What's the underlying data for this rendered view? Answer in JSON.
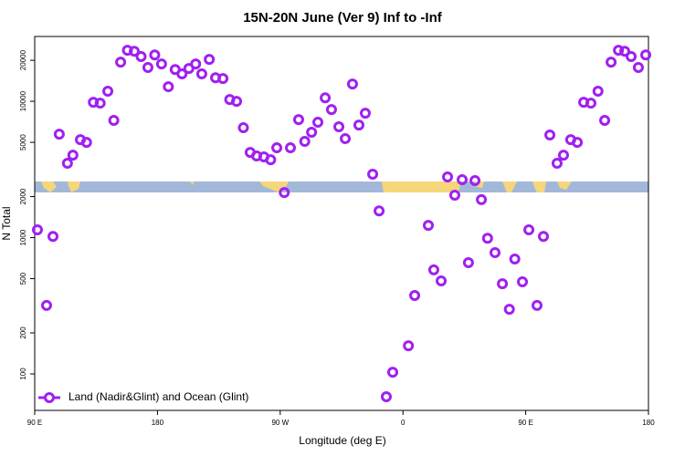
{
  "chart_data": {
    "type": "scatter",
    "title": "15N-20N June (Ver 9)   Inf to -Inf",
    "x_label": "Longitude (deg E)",
    "y_label": "N Total",
    "y_log_scale": true,
    "legend_position": "bottom-left",
    "xlim": [
      90,
      540
    ],
    "xticks": [
      {
        "value": 90,
        "label": "90 E"
      },
      {
        "value": 180,
        "label": "180"
      },
      {
        "value": 270,
        "label": "90 W"
      },
      {
        "value": 360,
        "label": "0"
      },
      {
        "value": 450,
        "label": "90 E"
      },
      {
        "value": 540,
        "label": "180"
      }
    ],
    "ylim": [
      54,
      29900
    ],
    "yticks": [
      100,
      200,
      500,
      1000,
      2000,
      5000,
      10000,
      20000
    ],
    "x": [
      92,
      98.7,
      103.4,
      108,
      114,
      118,
      123.5,
      128,
      133,
      138,
      143.6,
      148,
      153,
      158,
      163,
      168,
      173,
      178,
      183,
      188,
      193,
      198,
      203,
      208,
      212.5,
      218,
      222.6,
      228,
      233,
      238,
      243,
      248,
      252.7,
      258,
      263,
      267.5,
      273,
      277.5,
      283.5,
      288,
      293,
      297.6,
      303,
      307.6,
      313,
      317.7,
      323,
      327.7,
      332.4,
      337.8,
      342.5,
      347.8,
      352.5,
      364,
      368.6,
      378.6,
      382.6,
      388,
      392.7,
      398,
      403.4,
      408,
      412.8,
      417.5,
      422,
      427.5,
      432.9,
      438,
      442,
      447.6,
      452.3,
      458.3,
      463,
      467.7,
      473,
      477.7,
      483,
      487.8,
      492.5,
      497.8,
      503,
      507.9,
      512.6,
      518,
      522.6,
      527.3,
      532.6,
      538
    ],
    "series": [
      {
        "name": "Land (Nadir&Glint) and Ocean (Glint)",
        "color": "#a020f0",
        "values": [
          1140,
          318,
          1020,
          5740,
          3510,
          4030,
          5230,
          5000,
          9840,
          9700,
          11860,
          7240,
          19400,
          23700,
          23300,
          21300,
          17700,
          21900,
          18800,
          12800,
          17100,
          15900,
          17400,
          18800,
          15900,
          20300,
          14900,
          14700,
          10300,
          10000,
          6400,
          4220,
          3970,
          3910,
          3730,
          4560,
          2140,
          4560,
          7350,
          5080,
          5930,
          7020,
          10600,
          8700,
          6500,
          5320,
          13400,
          6700,
          8180,
          2920,
          1570,
          68,
          103,
          161,
          376,
          1230,
          580,
          481,
          2790,
          2050,
          2660,
          655,
          2620,
          1900,
          990,
          776,
          459,
          298,
          697,
          474,
          1140,
          318,
          1020,
          5660,
          3510,
          4030,
          5230,
          5000,
          9840,
          9700,
          11860,
          7240,
          19400,
          23700,
          23300,
          21300,
          17700,
          21900
        ]
      }
    ]
  }
}
